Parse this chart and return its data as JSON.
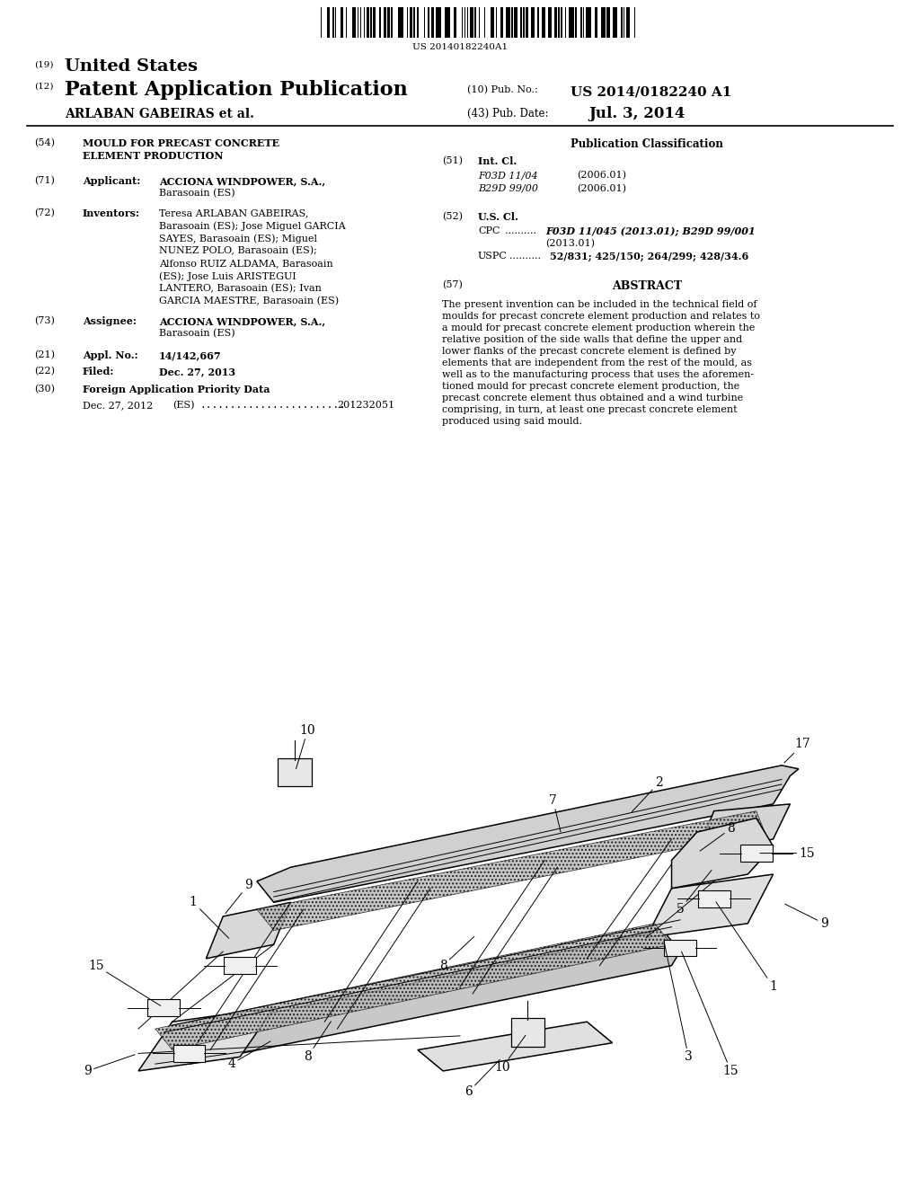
{
  "bg_color": "#ffffff",
  "barcode_text": "US 20140182240A1",
  "patent_title_19": "United States",
  "patent_title_12": "Patent Application Publication",
  "pub_no_value": "US 2014/0182240 A1",
  "applicant_name": "ARLABAN GABEIRAS et al.",
  "pub_date_value": "Jul. 3, 2014",
  "field54_title_line1": "MOULD FOR PRECAST CONCRETE",
  "field54_title_line2": "ELEMENT PRODUCTION",
  "field71_value_line1": "ACCIONA WINDPOWER, S.A.,",
  "field71_value_line2": "Barasoain (ES)",
  "inv_lines": [
    "Teresa ARLABAN GABEIRAS,",
    "Barasoain (ES); Jose Miguel GARCIA",
    "SAYES, Barasoain (ES); Miguel",
    "NUNEZ POLO, Barasoain (ES);",
    "Alfonso RUIZ ALDAMA, Barasoain",
    "(ES); Jose Luis ARISTEGUI",
    "LANTERO, Barasoain (ES); Ivan",
    "GARCIA MAESTRE, Barasoain (ES)"
  ],
  "field73_value_line1": "ACCIONA WINDPOWER, S.A.,",
  "field73_value_line2": "Barasoain (ES)",
  "field21_value": "14/142,667",
  "field22_value": "Dec. 27, 2013",
  "field30_date": "Dec. 27, 2012",
  "field30_number": "201232051",
  "pub_class_title": "Publication Classification",
  "field51_class1": "F03D 11/04",
  "field51_year1": "(2006.01)",
  "field51_class2": "B29D 99/00",
  "field51_year2": "(2006.01)",
  "field52_cpc_line1": "F03D 11/045 (2013.01); B29D 99/001",
  "field52_cpc_line2": "(2013.01)",
  "field52_uspc": "52/831; 425/150; 264/299; 428/34.6",
  "abstract_lines": [
    "The present invention can be included in the technical field of",
    "moulds for precast concrete element production and relates to",
    "a mould for precast concrete element production wherein the",
    "relative position of the side walls that define the upper and",
    "lower flanks of the precast concrete element is defined by",
    "elements that are independent from the rest of the mould, as",
    "well as to the manufacturing process that uses the aforemen-",
    "tioned mould for precast concrete element production, the",
    "precast concrete element thus obtained and a wind turbine",
    "comprising, in turn, at least one precast concrete element",
    "produced using said mould."
  ]
}
